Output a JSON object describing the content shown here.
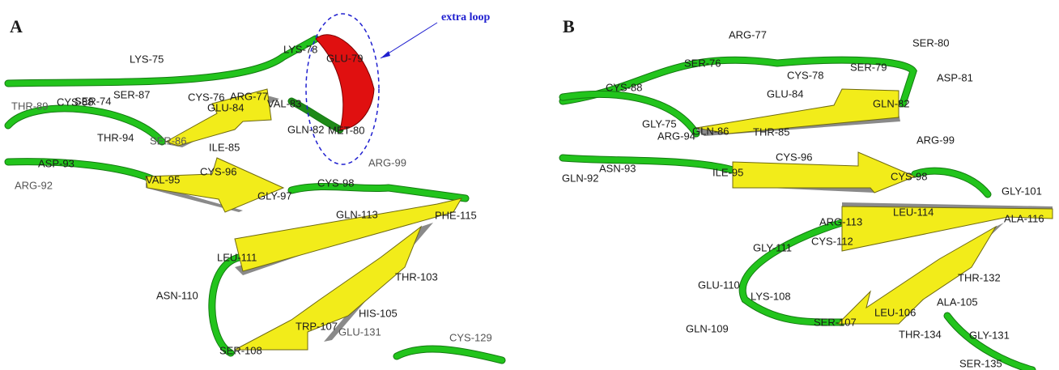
{
  "panels": [
    {
      "label": "A",
      "annotation": "extra loop",
      "residues": [
        "LYS-75",
        "LYS-78",
        "GLU-79",
        "THR-89",
        "CYS-88",
        "SER-74",
        "SER-87",
        "CYS-76",
        "ARG-77",
        "GLU-84",
        "VAL-83",
        "THR-94",
        "SER-86",
        "ILE-85",
        "GLN-82",
        "MET-80",
        "ARG-99",
        "ASP-93",
        "ARG-92",
        "VAL-95",
        "CYS-96",
        "GLY-97",
        "CYS-98",
        "GLN-113",
        "PHE-115",
        "LEU-111",
        "ASN-110",
        "THR-103",
        "HIS-105",
        "TRP-107",
        "GLU-131",
        "SER-108",
        "CYS-129"
      ]
    },
    {
      "label": "B",
      "residues": [
        "ARG-77",
        "SER-80",
        "SER-76",
        "ASP-81",
        "CYS-88",
        "CYS-78",
        "SER-79",
        "GLU-84",
        "GLN-82",
        "GLY-75",
        "ARG-94",
        "GLN-86",
        "THR-85",
        "ARG-99",
        "CYS-96",
        "GLN-92",
        "ASN-93",
        "ILE-95",
        "CYS-98",
        "GLY-101",
        "ARG-113",
        "LEU-114",
        "ALA-116",
        "GLY-111",
        "CYS-112",
        "GLU-110",
        "LYS-108",
        "THR-132",
        "ALA-105",
        "LEU-106",
        "GLN-109",
        "SER-107",
        "THR-134",
        "GLY-131",
        "SER-135"
      ]
    }
  ]
}
